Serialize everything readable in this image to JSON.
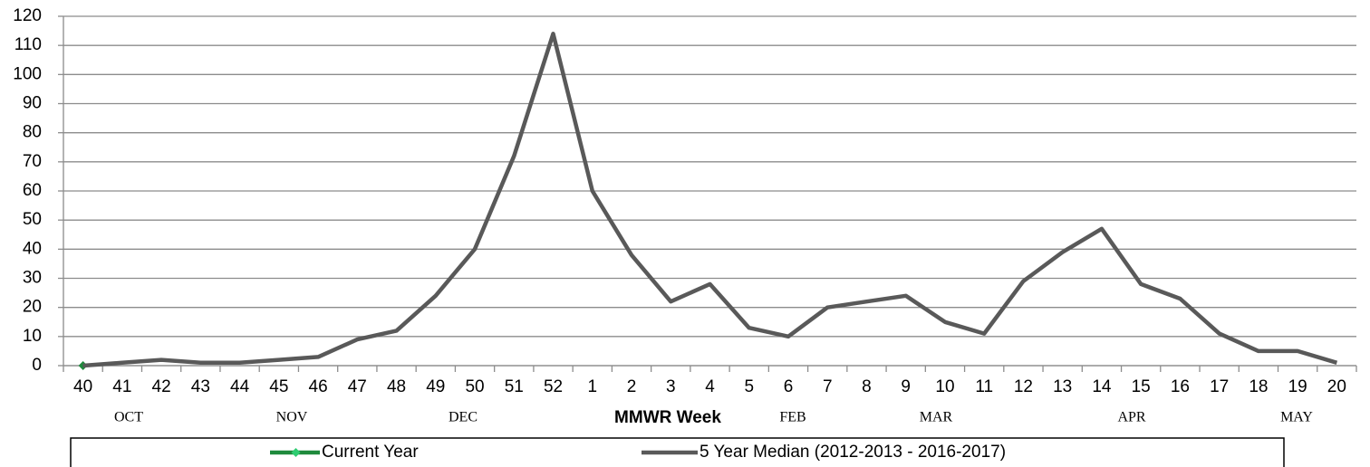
{
  "chart_data": {
    "type": "line",
    "x_label": "MMWR Week",
    "categories": [
      "40",
      "41",
      "42",
      "43",
      "44",
      "45",
      "46",
      "47",
      "48",
      "49",
      "50",
      "51",
      "52",
      "1",
      "2",
      "3",
      "4",
      "5",
      "6",
      "7",
      "8",
      "9",
      "10",
      "11",
      "12",
      "13",
      "14",
      "15",
      "16",
      "17",
      "18",
      "19",
      "20"
    ],
    "month_labels": [
      "OCT",
      "NOV",
      "DEC",
      "FEB",
      "MAR",
      "APR",
      "MAY"
    ],
    "series": [
      {
        "name": "Current Year",
        "color": "#1e8a3c",
        "values": [
          0,
          null,
          null,
          null,
          null,
          null,
          null,
          null,
          null,
          null,
          null,
          null,
          null,
          null,
          null,
          null,
          null,
          null,
          null,
          null,
          null,
          null,
          null,
          null,
          null,
          null,
          null,
          null,
          null,
          null,
          null,
          null,
          null
        ]
      },
      {
        "name": "5 Year Median (2012-2013 - 2016-2017)",
        "color": "#595959",
        "values": [
          0,
          1,
          2,
          1,
          1,
          2,
          3,
          9,
          12,
          24,
          40,
          72,
          114,
          60,
          38,
          22,
          28,
          13,
          10,
          20,
          22,
          24,
          15,
          11,
          29,
          39,
          47,
          28,
          23,
          11,
          5,
          5,
          1
        ]
      }
    ],
    "ylim": [
      0,
      120
    ],
    "yticks": [
      0,
      10,
      20,
      30,
      40,
      50,
      60,
      70,
      80,
      90,
      100,
      110,
      120
    ],
    "grid": true,
    "legend": "bottom"
  }
}
